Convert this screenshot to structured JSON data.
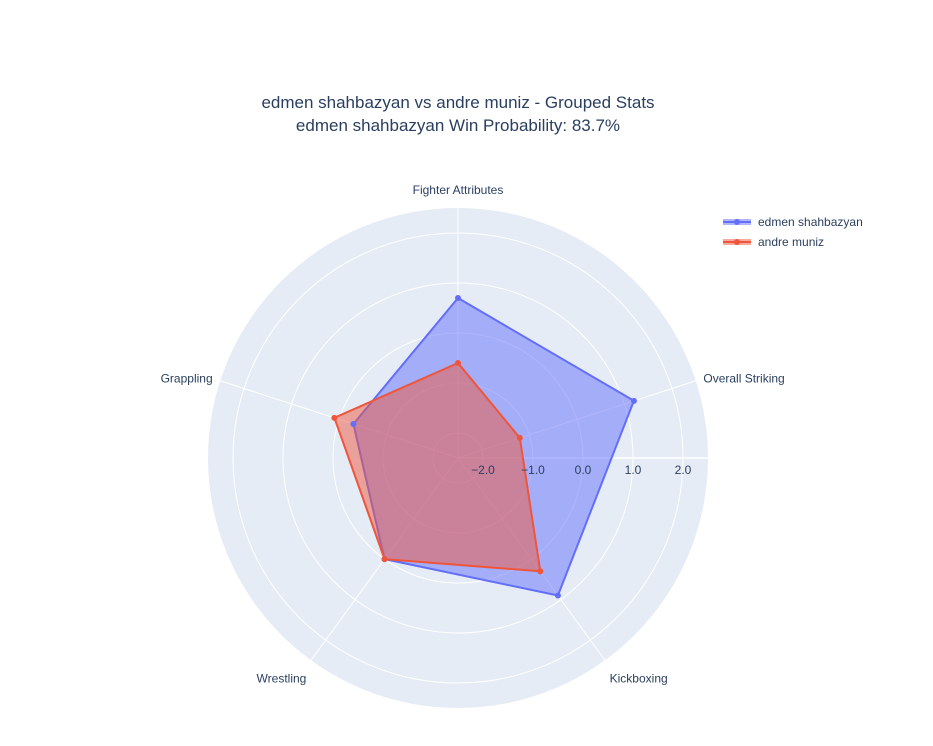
{
  "chart_data": {
    "type": "radar",
    "title": "edmen shahbazyan vs andre muniz - Grouped Stats",
    "subtitle": "edmen shahbazyan Win Probability: 83.7%",
    "categories": [
      "Fighter Attributes",
      "Overall Striking",
      "Kickboxing",
      "Wrestling",
      "Grappling"
    ],
    "radial_range": [
      -2.5,
      2.5
    ],
    "radial_ticks": [
      "−2.0",
      "−1.0",
      "0.0",
      "1.0",
      "2.0"
    ],
    "radial_tick_values": [
      -2,
      -1,
      0,
      1,
      2
    ],
    "grid": true,
    "legend_placement": "top-right",
    "series": [
      {
        "name": "edmen shahbazyan",
        "color": "#636efa",
        "values": [
          0.7,
          1.2,
          0.9,
          0.0,
          -0.3
        ]
      },
      {
        "name": "andre muniz",
        "color": "#ef553b",
        "values": [
          -0.6,
          -1.2,
          0.3,
          0.0,
          0.1
        ]
      }
    ]
  },
  "colors": {
    "polar_background": "#e5ecf6",
    "grid": "#ffffff",
    "text": "#2a3f5f"
  }
}
